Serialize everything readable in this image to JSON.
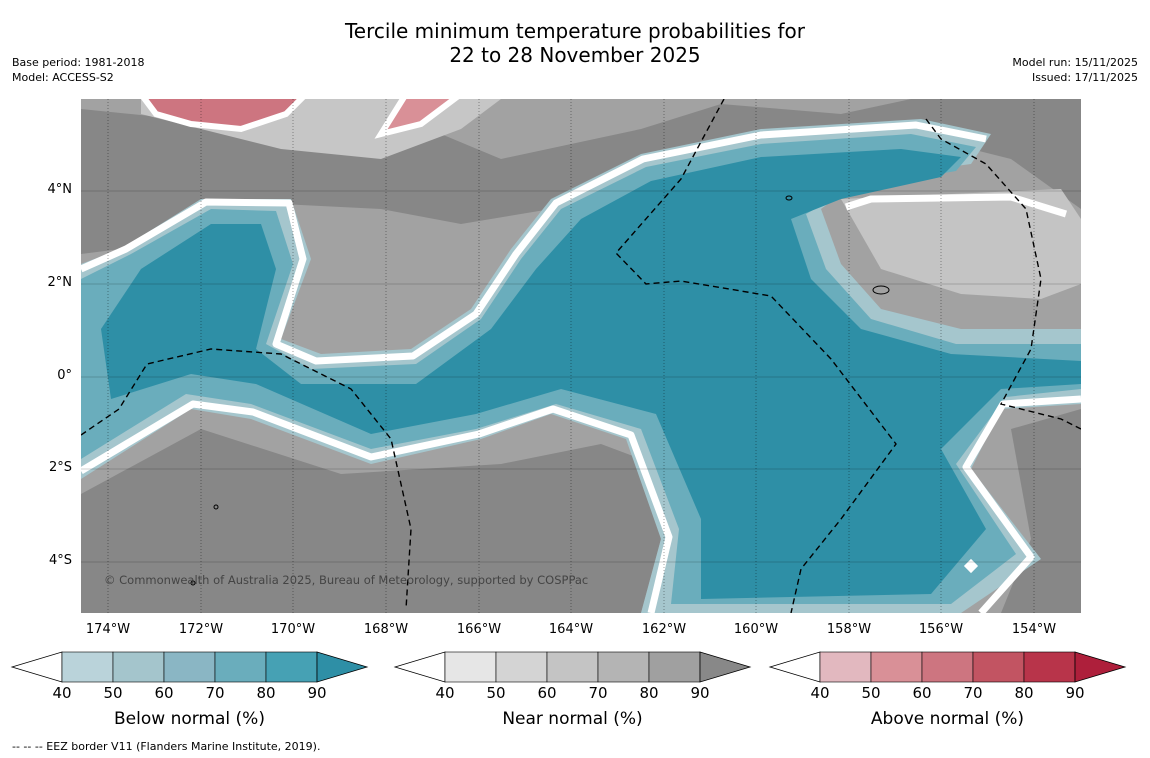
{
  "title_line1": "Tercile minimum temperature probabilities for",
  "title_line2": "22 to 28 November 2025",
  "meta_left": {
    "line1": "Base period: 1981-2018",
    "line2": "Model: ACCESS-S2"
  },
  "meta_right": {
    "line1": "Model run: 15/11/2025",
    "line2": "Issued: 17/11/2025"
  },
  "x_ticks": [
    "174°W",
    "172°W",
    "170°W",
    "168°W",
    "166°W",
    "164°W",
    "162°W",
    "160°W",
    "158°W",
    "156°W",
    "154°W"
  ],
  "y_ticks": [
    "4°N",
    "2°N",
    "0°",
    "2°S",
    "4°S"
  ],
  "copyright": "© Commonwealth of Australia 2025, Bureau of Meteorology, supported by COSPPac",
  "colorbars": [
    {
      "title": "Below normal (%)",
      "ticks": [
        "40",
        "50",
        "60",
        "70",
        "80",
        "90"
      ],
      "colors": [
        "#bad3da",
        "#a4c5cc",
        "#8ab6c4",
        "#6aadbc",
        "#46a1b4",
        "#2e8fa6"
      ]
    },
    {
      "title": "Near normal (%)",
      "ticks": [
        "40",
        "50",
        "60",
        "70",
        "80",
        "90"
      ],
      "colors": [
        "#e6e6e6",
        "#d4d4d4",
        "#c4c4c4",
        "#b4b4b4",
        "#a0a0a0",
        "#888888"
      ]
    },
    {
      "title": "Above normal (%)",
      "ticks": [
        "40",
        "50",
        "60",
        "70",
        "80",
        "90"
      ],
      "colors": [
        "#e2b8bf",
        "#d99097",
        "#cd7580",
        "#c25462",
        "#b8344a",
        "#ae1f3b"
      ]
    }
  ],
  "footer": "--  --  -- EEZ border V11 (Flanders Marine Institute, 2019)."
}
